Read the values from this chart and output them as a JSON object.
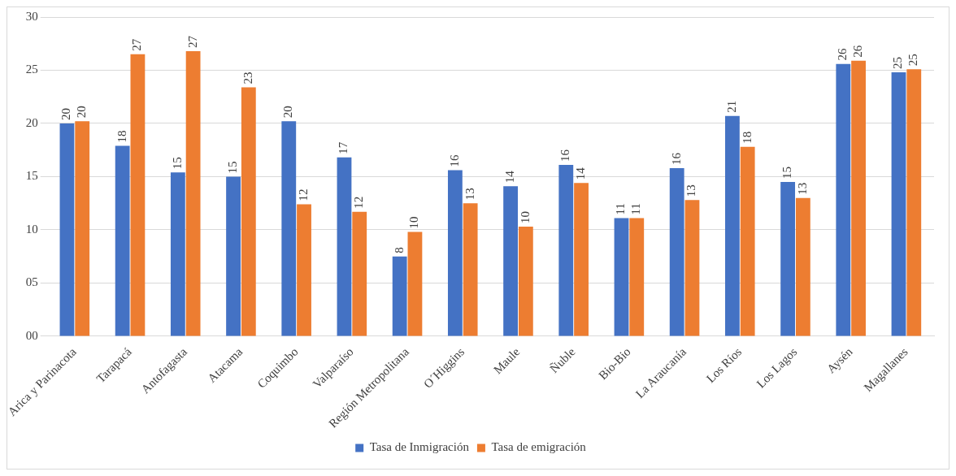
{
  "chart_data": {
    "type": "bar",
    "categories": [
      "Arica y Parinacota",
      "Tarapacá",
      "Antofagasta",
      "Atacama",
      "Coquimbo",
      "Valparaíso",
      "Región Metropolitana",
      "O´Higgins",
      "Maule",
      "Ñuble",
      "Bio-Bio",
      "La Araucanía",
      "Los Ríos",
      "Los Lagos",
      "Aysén",
      "Magallanes"
    ],
    "series": [
      {
        "name": "Tasa de Inmigración",
        "color": "#4472c4",
        "values": [
          20.0,
          17.9,
          15.4,
          15.0,
          20.2,
          16.8,
          7.5,
          15.6,
          14.1,
          16.1,
          11.1,
          15.8,
          20.7,
          14.5,
          25.6,
          24.8
        ],
        "value_labels": [
          "20",
          "18",
          "15",
          "15",
          "20",
          "17",
          "8",
          "16",
          "14",
          "16",
          "11",
          "16",
          "21",
          "15",
          "26",
          "25"
        ]
      },
      {
        "name": "Tasa de emigración",
        "color": "#ed7d31",
        "values": [
          20.2,
          26.5,
          26.8,
          23.4,
          12.4,
          11.7,
          9.8,
          12.5,
          10.3,
          14.4,
          11.1,
          12.8,
          17.8,
          13.0,
          25.9,
          25.1
        ],
        "value_labels": [
          "20",
          "27",
          "27",
          "23",
          "12",
          "12",
          "10",
          "13",
          "10",
          "14",
          "11",
          "13",
          "18",
          "13",
          "26",
          "25"
        ]
      }
    ],
    "ylim": [
      0,
      30
    ],
    "yticks": [
      {
        "value": 0,
        "label": "00"
      },
      {
        "value": 5,
        "label": "05"
      },
      {
        "value": 10,
        "label": "10"
      },
      {
        "value": 15,
        "label": "15"
      },
      {
        "value": 20,
        "label": "20"
      },
      {
        "value": 25,
        "label": "25"
      },
      {
        "value": 30,
        "label": "30"
      }
    ],
    "grid": "y",
    "legend": "bottom"
  }
}
